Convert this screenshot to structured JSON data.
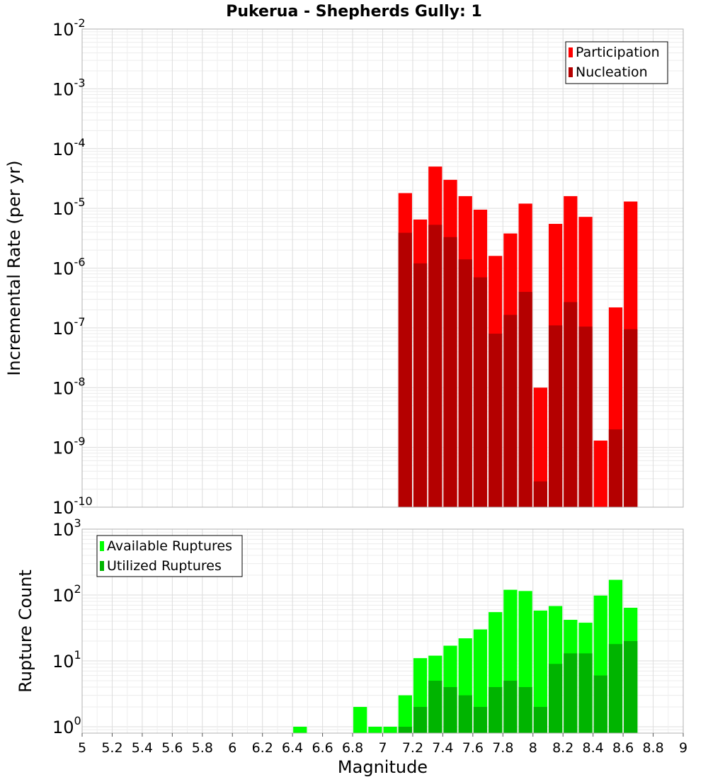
{
  "title": "Pukerua - Shepherds Gully: 1",
  "chart_data": [
    {
      "type": "bar",
      "ylabel": "Incremental Rate (per yr)",
      "yscale": "log",
      "ylim": [
        1e-10,
        0.01
      ],
      "y_tick_labels": [
        {
          "value": 1e-10,
          "base": "10",
          "exp": "-10"
        },
        {
          "value": 1e-09,
          "base": "10",
          "exp": "-9"
        },
        {
          "value": 1e-08,
          "base": "10",
          "exp": "-8"
        },
        {
          "value": 1e-07,
          "base": "10",
          "exp": "-7"
        },
        {
          "value": 1e-06,
          "base": "10",
          "exp": "-6"
        },
        {
          "value": 1e-05,
          "base": "10",
          "exp": "-5"
        },
        {
          "value": 0.0001,
          "base": "10",
          "exp": "-4"
        },
        {
          "value": 0.001,
          "base": "10",
          "exp": "-3"
        },
        {
          "value": 0.01,
          "base": "10",
          "exp": "-2"
        }
      ],
      "legend_position": "top-right",
      "grid": true,
      "x": [
        7.15,
        7.25,
        7.35,
        7.45,
        7.55,
        7.65,
        7.75,
        7.85,
        7.95,
        8.05,
        8.15,
        8.25,
        8.35,
        8.45,
        8.55,
        8.65
      ],
      "series": [
        {
          "name": "Participation",
          "color": "#ff0000",
          "values": [
            1.8e-05,
            6.5e-06,
            5e-05,
            3e-05,
            1.6e-05,
            9.5e-06,
            1.6e-06,
            3.8e-06,
            1.2e-05,
            1e-08,
            5.5e-06,
            1.6e-05,
            7.2e-06,
            1.3e-09,
            2.2e-07,
            1.3e-05
          ]
        },
        {
          "name": "Nucleation",
          "color": "#b40000",
          "values": [
            3.9e-06,
            1.2e-06,
            5.3e-06,
            3.3e-06,
            1.4e-06,
            7e-07,
            8e-08,
            1.65e-07,
            4e-07,
            2.7e-10,
            1.1e-07,
            2.7e-07,
            1.05e-07,
            null,
            2e-09,
            9.5e-08
          ]
        }
      ]
    },
    {
      "type": "bar",
      "xlabel": "Magnitude",
      "ylabel": "Rupture Count",
      "yscale": "log",
      "ylim": [
        0.8,
        1000
      ],
      "y_tick_labels": [
        {
          "value": 1,
          "base": "10",
          "exp": "0"
        },
        {
          "value": 10,
          "base": "10",
          "exp": "1"
        },
        {
          "value": 100,
          "base": "10",
          "exp": "2"
        },
        {
          "value": 1000,
          "base": "10",
          "exp": "3"
        }
      ],
      "xlim": [
        5,
        9
      ],
      "x_tick_labels": [
        "5",
        "5.2",
        "5.4",
        "5.6",
        "5.8",
        "6",
        "6.2",
        "6.4",
        "6.6",
        "6.8",
        "7",
        "7.2",
        "7.4",
        "7.6",
        "7.8",
        "8",
        "8.2",
        "8.4",
        "8.6",
        "8.8",
        "9"
      ],
      "x_ticks": [
        5,
        5.2,
        5.4,
        5.6,
        5.8,
        6,
        6.2,
        6.4,
        6.6,
        6.8,
        7,
        7.2,
        7.4,
        7.6,
        7.8,
        8,
        8.2,
        8.4,
        8.6,
        8.8,
        9
      ],
      "legend_position": "top-left",
      "grid": true,
      "x": [
        6.45,
        6.85,
        6.95,
        7.05,
        7.15,
        7.25,
        7.35,
        7.45,
        7.55,
        7.65,
        7.75,
        7.85,
        7.95,
        8.05,
        8.15,
        8.25,
        8.35,
        8.45,
        8.55,
        8.65
      ],
      "series": [
        {
          "name": "Available Ruptures",
          "color": "#00ff00",
          "values": [
            1,
            2,
            1,
            1,
            3,
            11,
            12,
            17,
            22,
            30,
            55,
            120,
            115,
            58,
            68,
            42,
            38,
            98,
            170,
            64
          ]
        },
        {
          "name": "Utilized Ruptures",
          "color": "#00b400",
          "values": [
            null,
            null,
            null,
            null,
            1,
            2,
            5,
            4,
            3,
            2,
            4,
            5,
            4,
            2,
            9,
            13,
            13,
            6,
            18,
            20
          ]
        }
      ]
    }
  ]
}
